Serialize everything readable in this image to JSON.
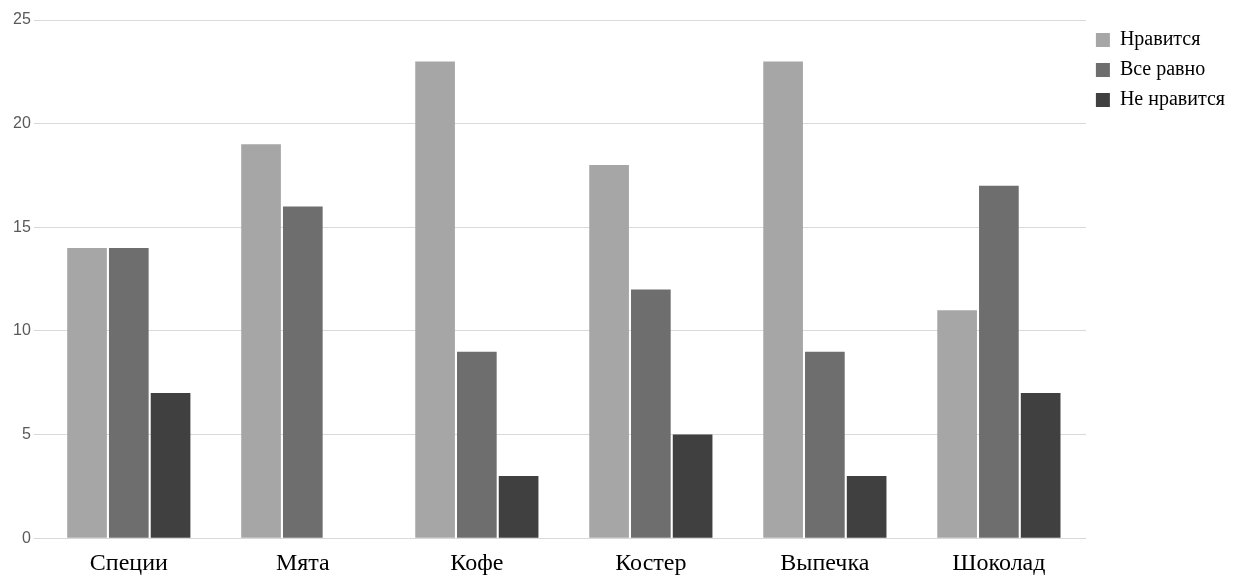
{
  "chart_data": {
    "type": "bar",
    "categories": [
      "Специи",
      "Мята",
      "Кофе",
      "Костер",
      "Выпечка",
      "Шоколад"
    ],
    "series": [
      {
        "name": "Нравится",
        "color": "#a6a6a6",
        "values": [
          14,
          19,
          23,
          18,
          23,
          11
        ]
      },
      {
        "name": "Все равно",
        "color": "#6e6e6e",
        "values": [
          14,
          16,
          9,
          12,
          9,
          17
        ]
      },
      {
        "name": "Не нравится",
        "color": "#404040",
        "values": [
          7,
          0,
          3,
          5,
          3,
          7
        ]
      }
    ],
    "ylim": [
      0,
      25
    ],
    "yticks": [
      0,
      5,
      10,
      15,
      20,
      25
    ],
    "grid": "y",
    "legend": "top right"
  }
}
